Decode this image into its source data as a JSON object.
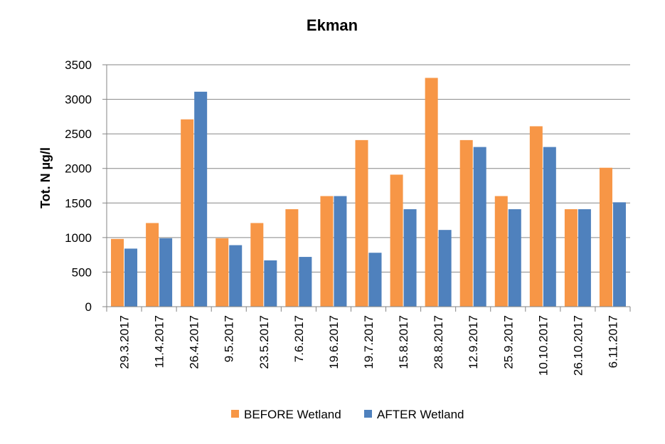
{
  "chart_data": {
    "type": "bar",
    "title": "Ekman",
    "ylabel": "Tot. N µg/l",
    "xlabel": "",
    "ylim": [
      0,
      3500
    ],
    "yticks": [
      0,
      500,
      1000,
      1500,
      2000,
      2500,
      3000,
      3500
    ],
    "grid": true,
    "legend_position": "bottom",
    "categories": [
      "29.3.2017",
      "11.4.2017",
      "26.4.2017",
      "9.5.2017",
      "23.5.2017",
      "7.6.2017",
      "19.6.2017",
      "19.7.2017",
      "15.8.2017",
      "28.8.2017",
      "12.9.2017",
      "25.9.2017",
      "10.10.2017",
      "26.10.2017",
      "6.11.2017"
    ],
    "series": [
      {
        "name": "BEFORE Wetland",
        "color": "#F79646",
        "values": [
          980,
          1210,
          2710,
          990,
          1210,
          1410,
          1600,
          2410,
          1910,
          3310,
          2410,
          1600,
          2610,
          1410,
          2010
        ]
      },
      {
        "name": "AFTER Wetland",
        "color": "#4F81BD",
        "values": [
          840,
          990,
          3110,
          890,
          670,
          720,
          1600,
          780,
          1410,
          1110,
          2310,
          1410,
          2310,
          1410,
          1510
        ]
      }
    ]
  }
}
